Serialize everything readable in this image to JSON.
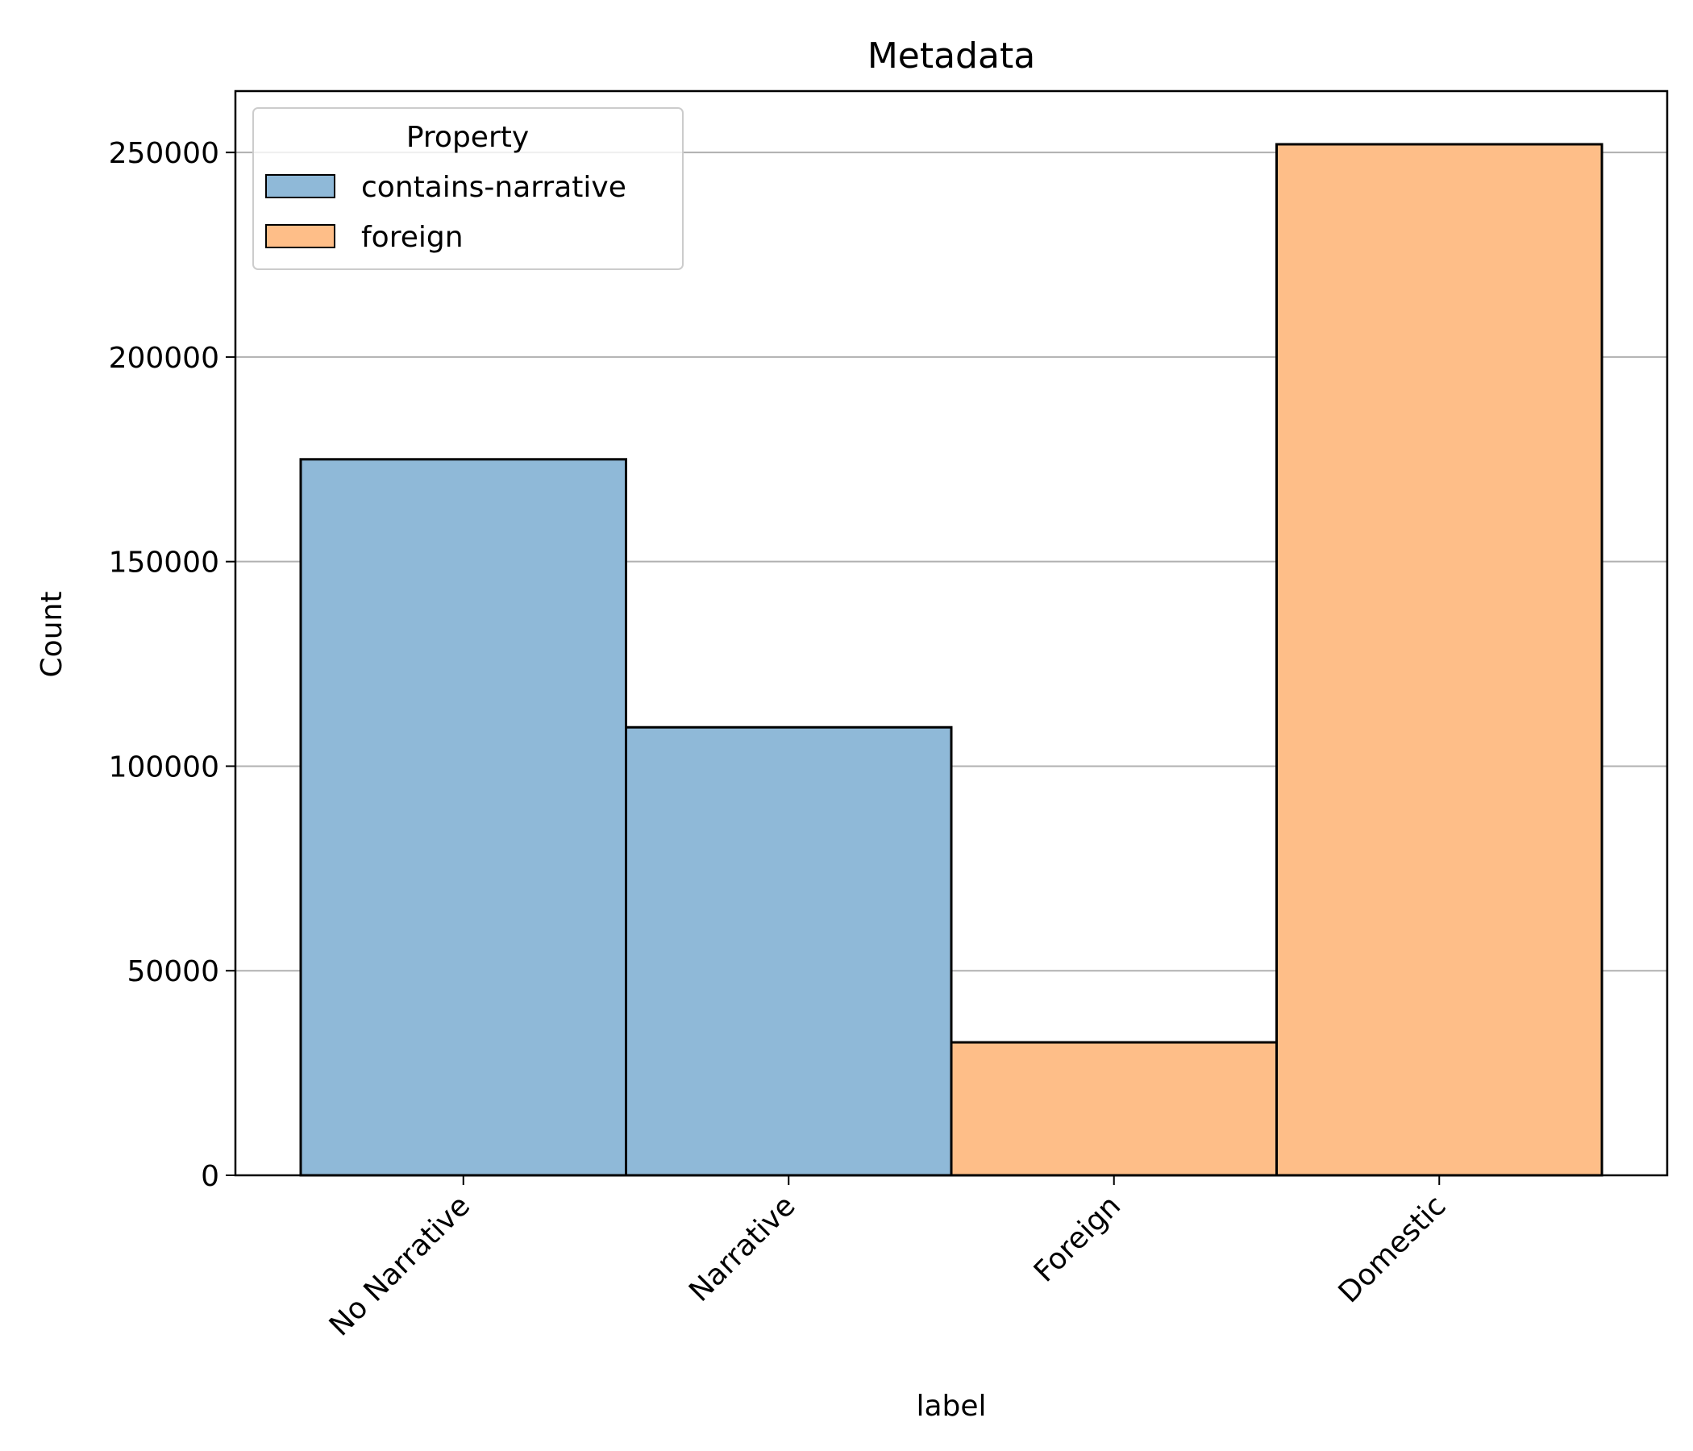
{
  "chart_data": {
    "type": "bar",
    "title": "Metadata",
    "xlabel": "label",
    "ylabel": "Count",
    "ylim": [
      0,
      265000
    ],
    "yticks": [
      0,
      50000,
      100000,
      150000,
      200000,
      250000
    ],
    "ytick_labels": [
      "0",
      "50000",
      "100000",
      "150000",
      "200000",
      "250000"
    ],
    "grid": "y",
    "categories": [
      "No Narrative",
      "Narrative",
      "Foreign",
      "Domestic"
    ],
    "legend": {
      "title": "Property",
      "placement": "top-left",
      "entries": [
        {
          "label": "contains-narrative",
          "color": "#8fb9d8"
        },
        {
          "label": "foreign",
          "color": "#febe88"
        }
      ]
    },
    "bars": [
      {
        "category": "No Narrative",
        "value": 175000,
        "series": "contains-narrative"
      },
      {
        "category": "Narrative",
        "value": 109500,
        "series": "contains-narrative"
      },
      {
        "category": "Foreign",
        "value": 32500,
        "series": "foreign"
      },
      {
        "category": "Domestic",
        "value": 252000,
        "series": "foreign"
      }
    ],
    "colors": {
      "contains-narrative": "#8fb9d8",
      "foreign": "#febe88",
      "grid": "#b0b0b0",
      "edge": "#000000"
    }
  }
}
